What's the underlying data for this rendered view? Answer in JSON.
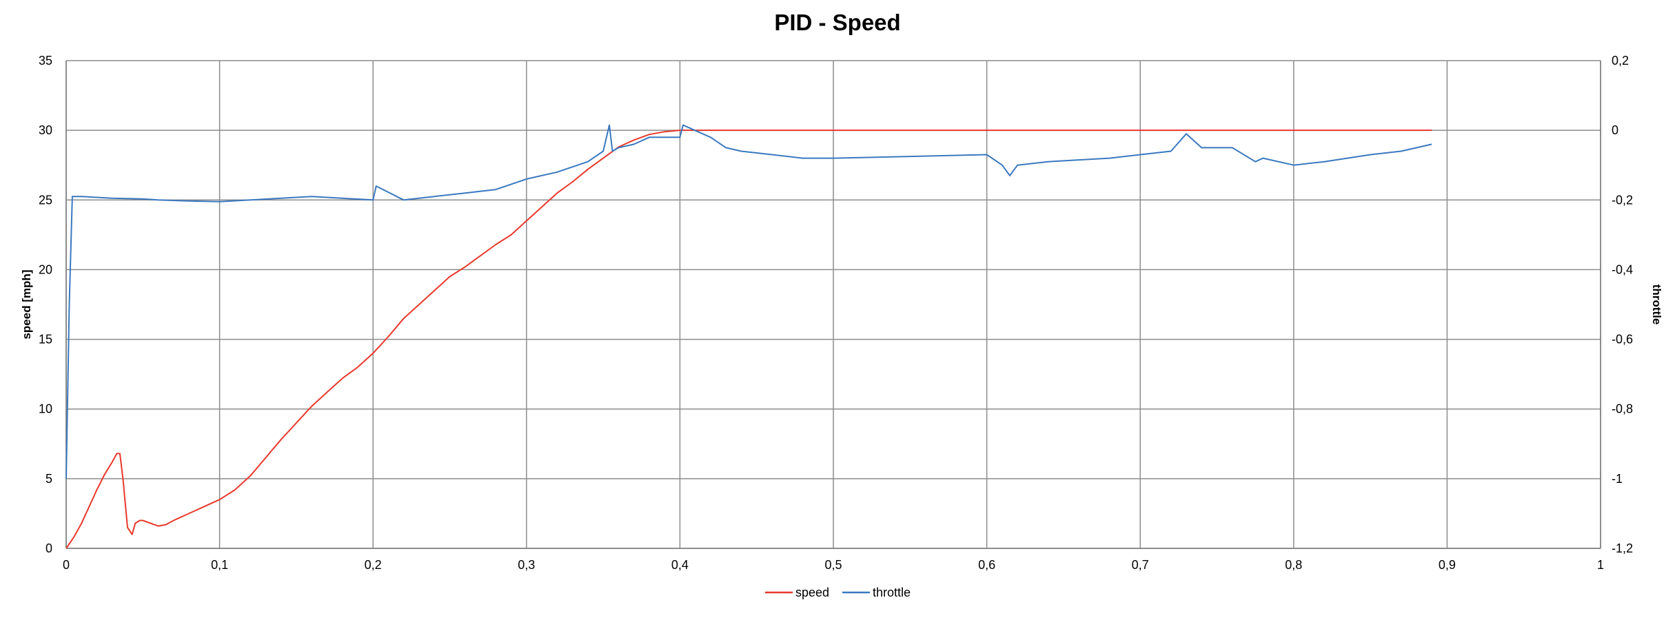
{
  "chart_data": {
    "type": "line",
    "title": "PID - Speed",
    "xlabel": "",
    "ylabel": "speed [mph]",
    "y2label": "throttle",
    "xlim": [
      0,
      1
    ],
    "ylim": [
      0,
      35
    ],
    "y2lim": [
      -1.2,
      0.2
    ],
    "grid": true,
    "legend_position": "bottom",
    "x_ticks": [
      "0",
      "0,1",
      "0,2",
      "0,3",
      "0,4",
      "0,5",
      "0,6",
      "0,7",
      "0,8",
      "0,9",
      "1"
    ],
    "y_ticks": [
      "0",
      "5",
      "10",
      "15",
      "20",
      "25",
      "30",
      "35"
    ],
    "y2_ticks": [
      "-1,2",
      "-1",
      "-0,8",
      "-0,6",
      "-0,4",
      "-0,2",
      "0",
      "0,2"
    ],
    "colors": {
      "speed": "#e8382b",
      "throttle": "#3a78c0",
      "grid": "#8c8c8c"
    },
    "series": [
      {
        "name": "speed",
        "axis": "left",
        "x": [
          0,
          0.005,
          0.01,
          0.015,
          0.02,
          0.025,
          0.03,
          0.033,
          0.035,
          0.037,
          0.04,
          0.043,
          0.045,
          0.048,
          0.05,
          0.055,
          0.06,
          0.065,
          0.07,
          0.08,
          0.09,
          0.1,
          0.11,
          0.12,
          0.13,
          0.14,
          0.15,
          0.16,
          0.17,
          0.18,
          0.19,
          0.2,
          0.21,
          0.22,
          0.23,
          0.24,
          0.25,
          0.26,
          0.27,
          0.28,
          0.29,
          0.3,
          0.31,
          0.32,
          0.33,
          0.34,
          0.35,
          0.36,
          0.37,
          0.38,
          0.39,
          0.4,
          0.41,
          0.42,
          0.43,
          0.5,
          0.6,
          0.7,
          0.8,
          0.89
        ],
        "y": [
          0,
          0.8,
          1.8,
          3.0,
          4.2,
          5.3,
          6.2,
          6.8,
          6.8,
          5.0,
          1.5,
          1.0,
          1.8,
          2.0,
          2.0,
          1.8,
          1.6,
          1.7,
          2.0,
          2.5,
          3.0,
          3.5,
          4.2,
          5.2,
          6.5,
          7.8,
          9.0,
          10.2,
          11.2,
          12.2,
          13.0,
          14.0,
          15.2,
          16.5,
          17.5,
          18.5,
          19.5,
          20.2,
          21.0,
          21.8,
          22.5,
          23.5,
          24.5,
          25.5,
          26.3,
          27.2,
          28.0,
          28.8,
          29.3,
          29.7,
          29.9,
          30.0,
          30.0,
          30.0,
          30.0,
          30.0,
          30.0,
          30.0,
          30.0,
          30.0
        ]
      },
      {
        "name": "throttle",
        "axis": "right",
        "x": [
          0,
          0.002,
          0.004,
          0.01,
          0.03,
          0.05,
          0.06,
          0.08,
          0.1,
          0.12,
          0.14,
          0.16,
          0.18,
          0.2,
          0.202,
          0.22,
          0.24,
          0.26,
          0.28,
          0.3,
          0.32,
          0.34,
          0.35,
          0.354,
          0.356,
          0.36,
          0.37,
          0.38,
          0.39,
          0.4,
          0.402,
          0.42,
          0.43,
          0.44,
          0.46,
          0.48,
          0.5,
          0.55,
          0.6,
          0.61,
          0.615,
          0.62,
          0.64,
          0.66,
          0.68,
          0.7,
          0.72,
          0.73,
          0.74,
          0.76,
          0.775,
          0.78,
          0.8,
          0.82,
          0.85,
          0.87,
          0.89
        ],
        "y": [
          -1.0,
          -0.5,
          -0.19,
          -0.19,
          -0.195,
          -0.197,
          -0.2,
          -0.203,
          -0.205,
          -0.2,
          -0.195,
          -0.19,
          -0.195,
          -0.2,
          -0.16,
          -0.2,
          -0.19,
          -0.18,
          -0.17,
          -0.14,
          -0.12,
          -0.09,
          -0.06,
          0.015,
          -0.06,
          -0.05,
          -0.04,
          -0.02,
          -0.02,
          -0.02,
          0.015,
          -0.02,
          -0.05,
          -0.06,
          -0.07,
          -0.08,
          -0.08,
          -0.075,
          -0.07,
          -0.1,
          -0.13,
          -0.1,
          -0.09,
          -0.085,
          -0.08,
          -0.07,
          -0.06,
          -0.01,
          -0.05,
          -0.05,
          -0.09,
          -0.08,
          -0.1,
          -0.09,
          -0.07,
          -0.06,
          -0.04
        ]
      }
    ]
  }
}
